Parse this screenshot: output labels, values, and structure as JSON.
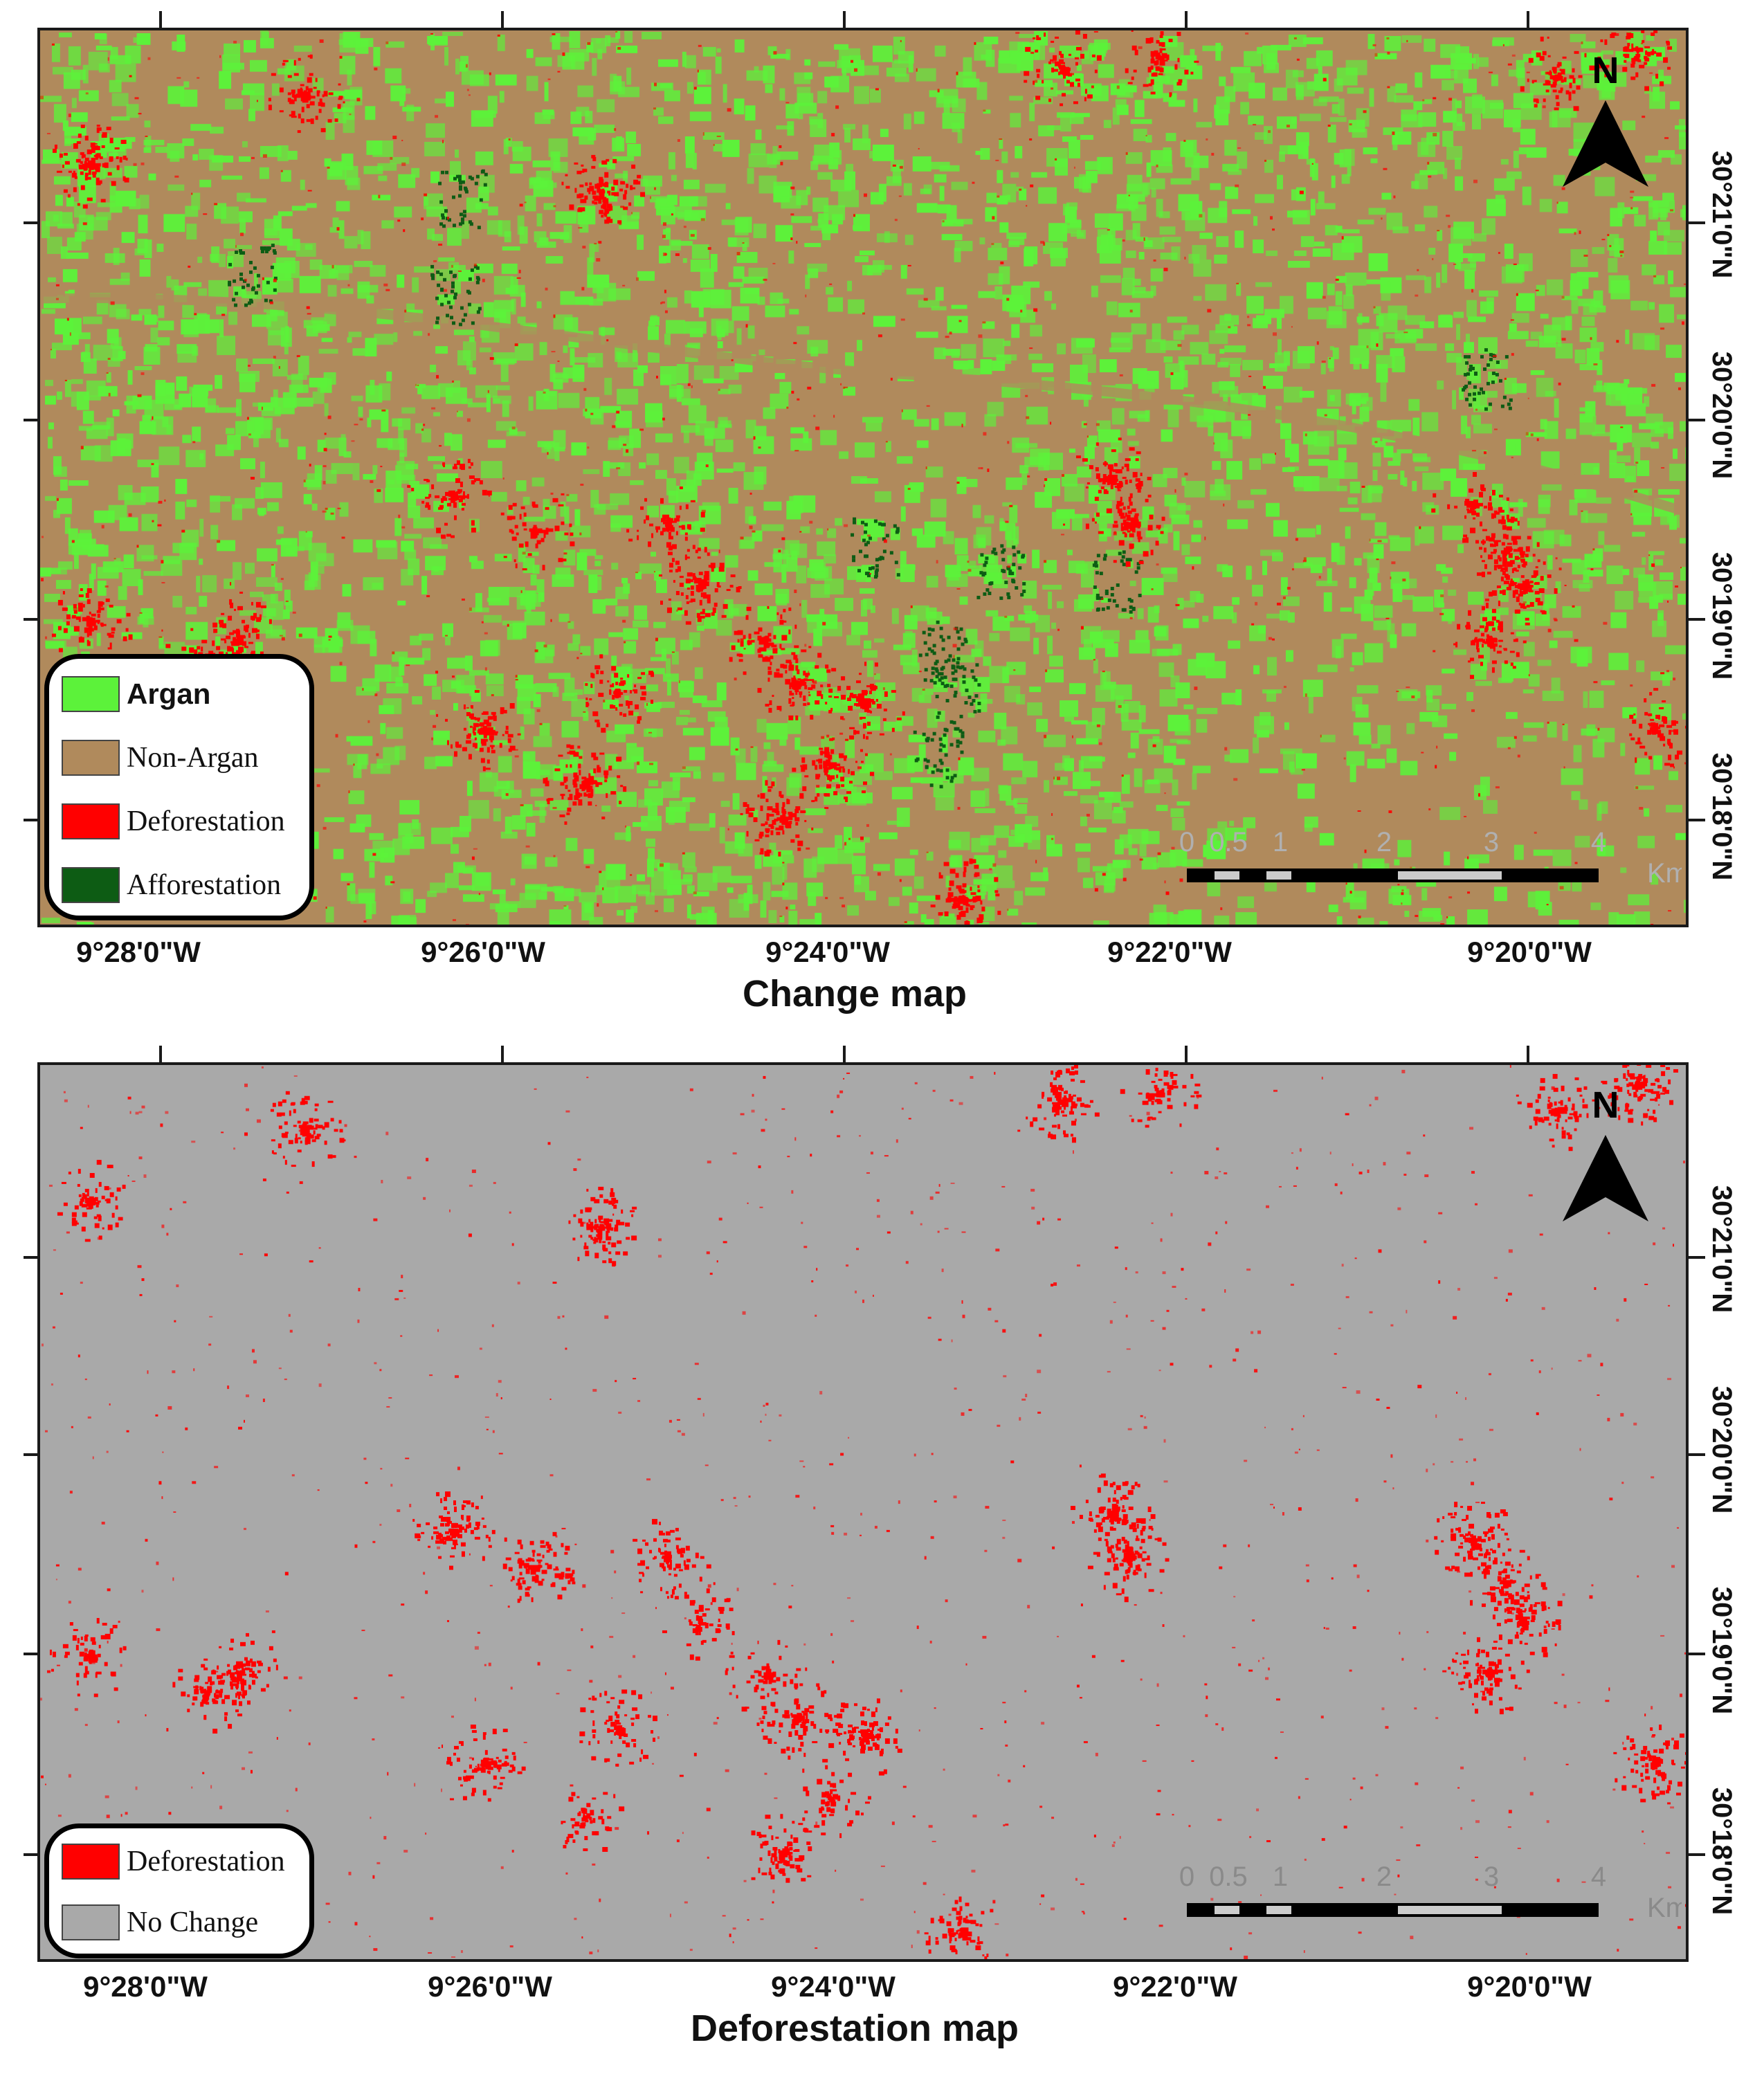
{
  "colors": {
    "argan": "#5cf23a",
    "non_argan": "#b08a5c",
    "deforestation": "#ff0000",
    "afforestation": "#0d5c14",
    "no_change": "#a9a9a9",
    "frame": "#1a1a1a"
  },
  "lon_labels": [
    "9°28'0\"W",
    "9°26'0\"W",
    "9°24'0\"W",
    "9°22'0\"W",
    "9°20'0\"W"
  ],
  "lat_labels": [
    "30°21'0\"N",
    "30°20'0\"N",
    "30°19'0\"N",
    "30°18'0\"N"
  ],
  "north_arrow": {
    "letter": "N",
    "icon": "north-arrow-icon"
  },
  "scale_bar": {
    "ticks": [
      "0",
      "0.5",
      "1",
      "2",
      "3",
      "4"
    ],
    "unit": "Km"
  },
  "change_map": {
    "title": "Change map",
    "legend": [
      {
        "label": "Argan",
        "color_key": "argan",
        "bold": true
      },
      {
        "label": "Non-Argan",
        "color_key": "non_argan",
        "bold": false
      },
      {
        "label": "Deforestation",
        "color_key": "deforestation",
        "bold": false
      },
      {
        "label": "Afforestation",
        "color_key": "afforestation",
        "bold": false
      }
    ]
  },
  "deforestation_map": {
    "title": "Deforestation map",
    "legend": [
      {
        "label": "Deforestation",
        "color_key": "deforestation",
        "bold": false
      },
      {
        "label": "No Change",
        "color_key": "no_change",
        "bold": false
      }
    ]
  }
}
